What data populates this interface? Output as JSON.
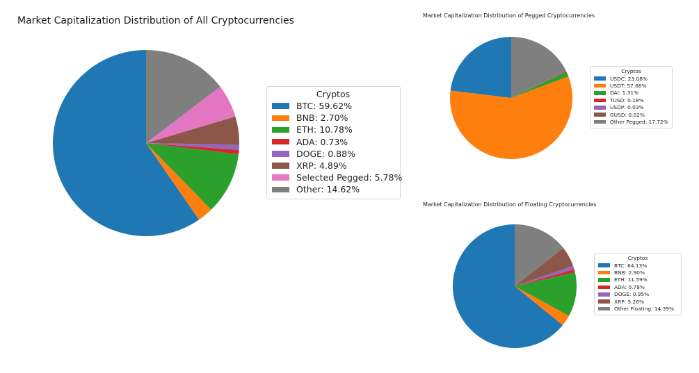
{
  "chart_data": [
    {
      "type": "pie",
      "title": "Market Capitalization Distribution of All Cryptocurrencies",
      "legend_title": "Cryptos",
      "legend_position": "right",
      "start_angle": 90,
      "direction": "counterclockwise",
      "categories": [
        "BTC",
        "BNB",
        "ETH",
        "ADA",
        "DOGE",
        "XRP",
        "Selected Pegged",
        "Other"
      ],
      "values": [
        59.62,
        2.7,
        10.78,
        0.73,
        0.88,
        4.89,
        5.78,
        14.62
      ],
      "colors": [
        "#1f77b4",
        "#ff7f0e",
        "#2ca02c",
        "#d62728",
        "#9467bd",
        "#8c564b",
        "#e377c2",
        "#7f7f7f"
      ],
      "labels": [
        "BTC: 59.62%",
        "BNB: 2.70%",
        "ETH: 10.78%",
        "ADA: 0.73%",
        "DOGE: 0.88%",
        "XRP: 4.89%",
        "Selected Pegged: 5.78%",
        "Other: 14.62%"
      ]
    },
    {
      "type": "pie",
      "title": "Market Capitalization Distribution of Pegged Cryptocurrencies",
      "legend_title": "Cryptos",
      "legend_position": "right",
      "start_angle": 90,
      "direction": "counterclockwise",
      "categories": [
        "USDC",
        "USDT",
        "DAI",
        "TUSD",
        "USDP",
        "GUSD",
        "Other Pegged"
      ],
      "values": [
        23.08,
        57.66,
        1.31,
        0.18,
        0.03,
        0.02,
        17.72
      ],
      "colors": [
        "#1f77b4",
        "#ff7f0e",
        "#2ca02c",
        "#d62728",
        "#9467bd",
        "#8c564b",
        "#7f7f7f"
      ],
      "labels": [
        "USDC: 23.08%",
        "USDT: 57.66%",
        "DAI: 1.31%",
        "TUSD: 0.18%",
        "USDP: 0.03%",
        "GUSD: 0.02%",
        "Other Pegged: 17.72%"
      ]
    },
    {
      "type": "pie",
      "title": "Market Capitalization Distribution of Floating Cryptocurrencies",
      "legend_title": "Cryptos",
      "legend_position": "right",
      "start_angle": 90,
      "direction": "counterclockwise",
      "categories": [
        "BTC",
        "BNB",
        "ETH",
        "ADA",
        "DOGE",
        "XRP",
        "Other Floating"
      ],
      "values": [
        64.13,
        2.9,
        11.59,
        0.78,
        0.95,
        5.26,
        14.39
      ],
      "colors": [
        "#1f77b4",
        "#ff7f0e",
        "#2ca02c",
        "#d62728",
        "#9467bd",
        "#8c564b",
        "#7f7f7f"
      ],
      "labels": [
        "BTC: 64.13%",
        "BNB: 2.90%",
        "ETH: 11.59%",
        "ADA: 0.78%",
        "DOGE: 0.95%",
        "XRP: 5.26%",
        "Other Floating: 14.39%"
      ]
    }
  ]
}
